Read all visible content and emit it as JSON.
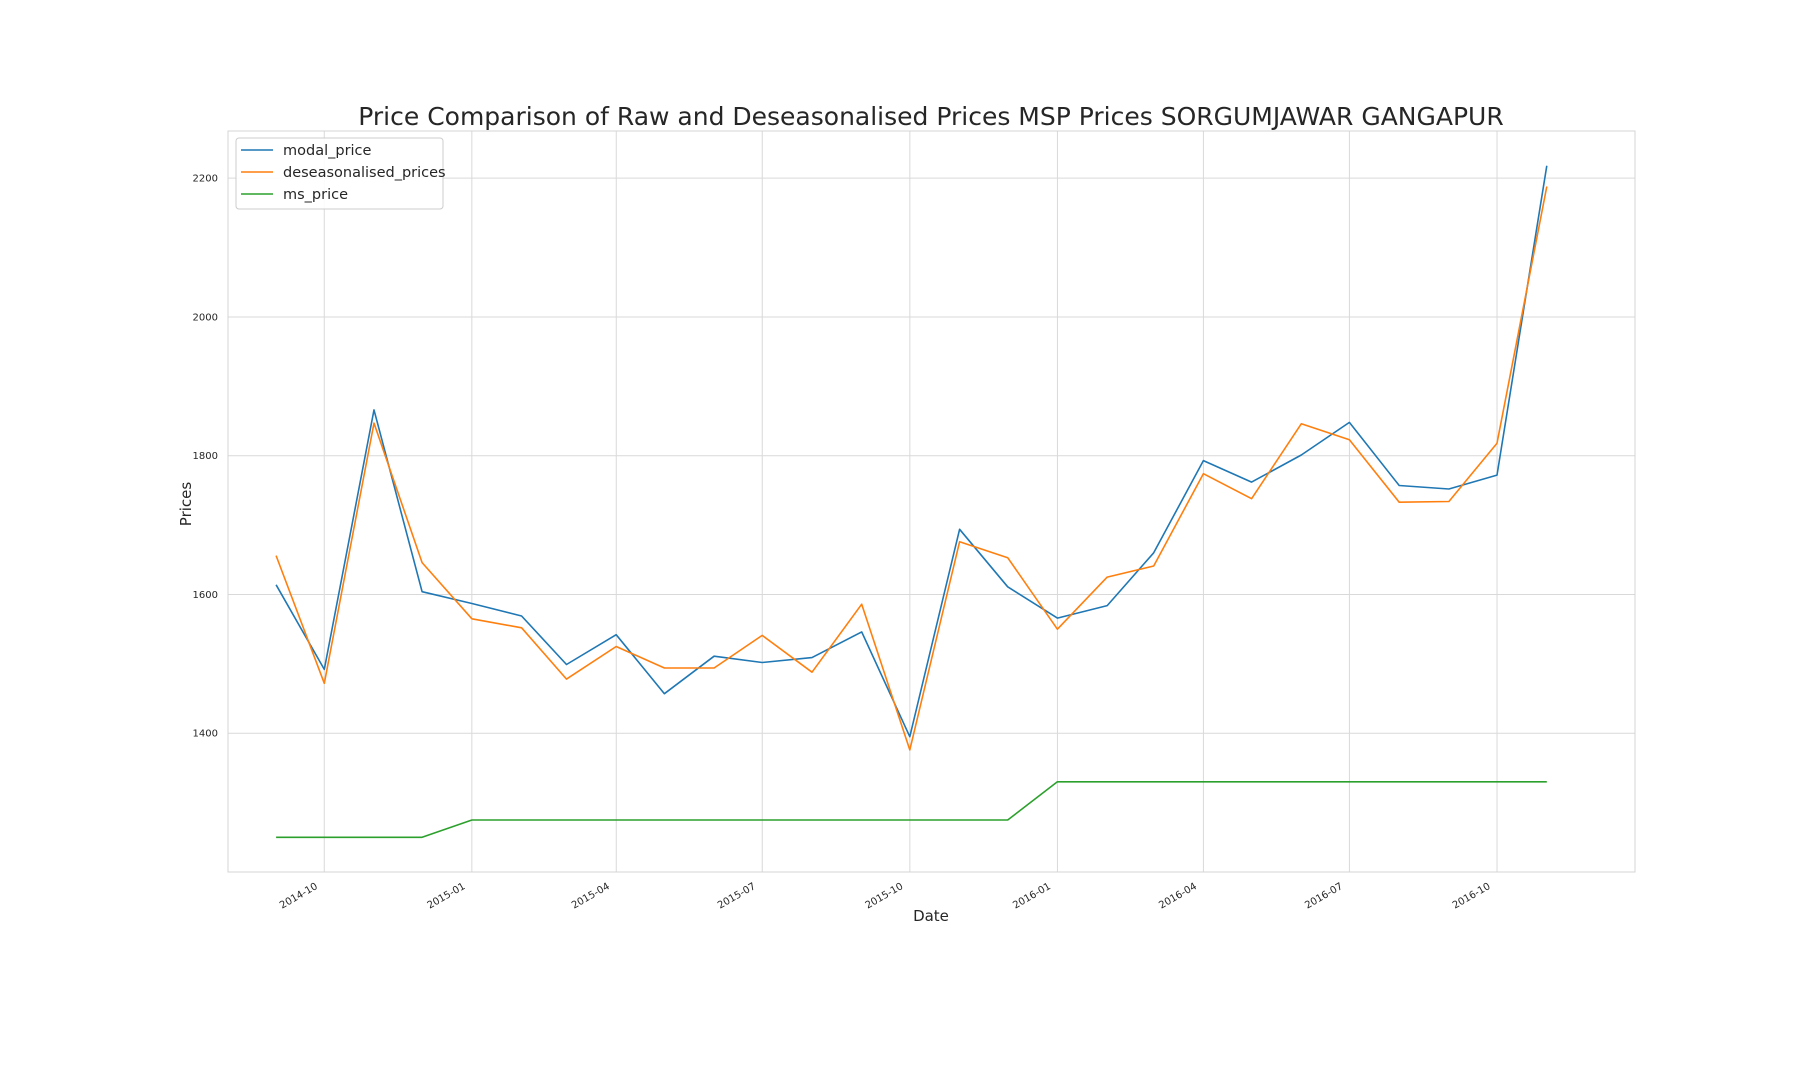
{
  "chart_data": {
    "type": "line",
    "title": "Price Comparison of Raw and Deseasonalised Prices MSP Prices SORGUMJAWAR GANGAPUR",
    "xlabel": "Date",
    "ylabel": "Prices",
    "x": [
      "2014-09",
      "2014-10",
      "2014-11",
      "2014-12",
      "2015-01",
      "2015-02",
      "2015-03",
      "2015-04",
      "2015-05",
      "2015-06",
      "2015-07",
      "2015-08",
      "2015-09",
      "2015-10",
      "2015-11",
      "2015-12",
      "2016-01",
      "2016-02",
      "2016-03",
      "2016-04",
      "2016-05",
      "2016-06",
      "2016-07",
      "2016-08",
      "2016-09",
      "2016-10",
      "2016-11"
    ],
    "x_ticks": [
      "2014-10",
      "2015-01",
      "2015-04",
      "2015-07",
      "2015-10",
      "2016-01",
      "2016-04",
      "2016-07",
      "2016-10"
    ],
    "x_range": [
      "2014-08-02",
      "2016-12-26"
    ],
    "y_ticks": [
      1400,
      1600,
      1800,
      2000,
      2200
    ],
    "ylim": [
      1200,
      2268
    ],
    "grid": true,
    "legend_position": "upper left",
    "series": [
      {
        "name": "modal_price",
        "color": "#1f77b4",
        "values": [
          1614,
          1492,
          1866,
          1604,
          1587,
          1569,
          1499,
          1542,
          1457,
          1511,
          1502,
          1509,
          1546,
          1395,
          1694,
          1611,
          1566,
          1584,
          1660,
          1793,
          1762,
          1801,
          1848,
          1757,
          1752,
          1772,
          2218
        ]
      },
      {
        "name": "deseasonalised_prices",
        "color": "#ff7f0e",
        "values": [
          1656,
          1472,
          1847,
          1646,
          1565,
          1552,
          1478,
          1525,
          1494,
          1494,
          1541,
          1488,
          1586,
          1376,
          1676,
          1653,
          1550,
          1625,
          1641,
          1774,
          1738,
          1846,
          1823,
          1733,
          1734,
          1818,
          2188
        ]
      },
      {
        "name": "ms_price",
        "color": "#2ca02c",
        "values": [
          1250,
          1250,
          1250,
          1250,
          1275,
          1275,
          1275,
          1275,
          1275,
          1275,
          1275,
          1275,
          1275,
          1275,
          1275,
          1275,
          1330,
          1330,
          1330,
          1330,
          1330,
          1330,
          1330,
          1330,
          1330,
          1330,
          1330
        ]
      }
    ]
  }
}
